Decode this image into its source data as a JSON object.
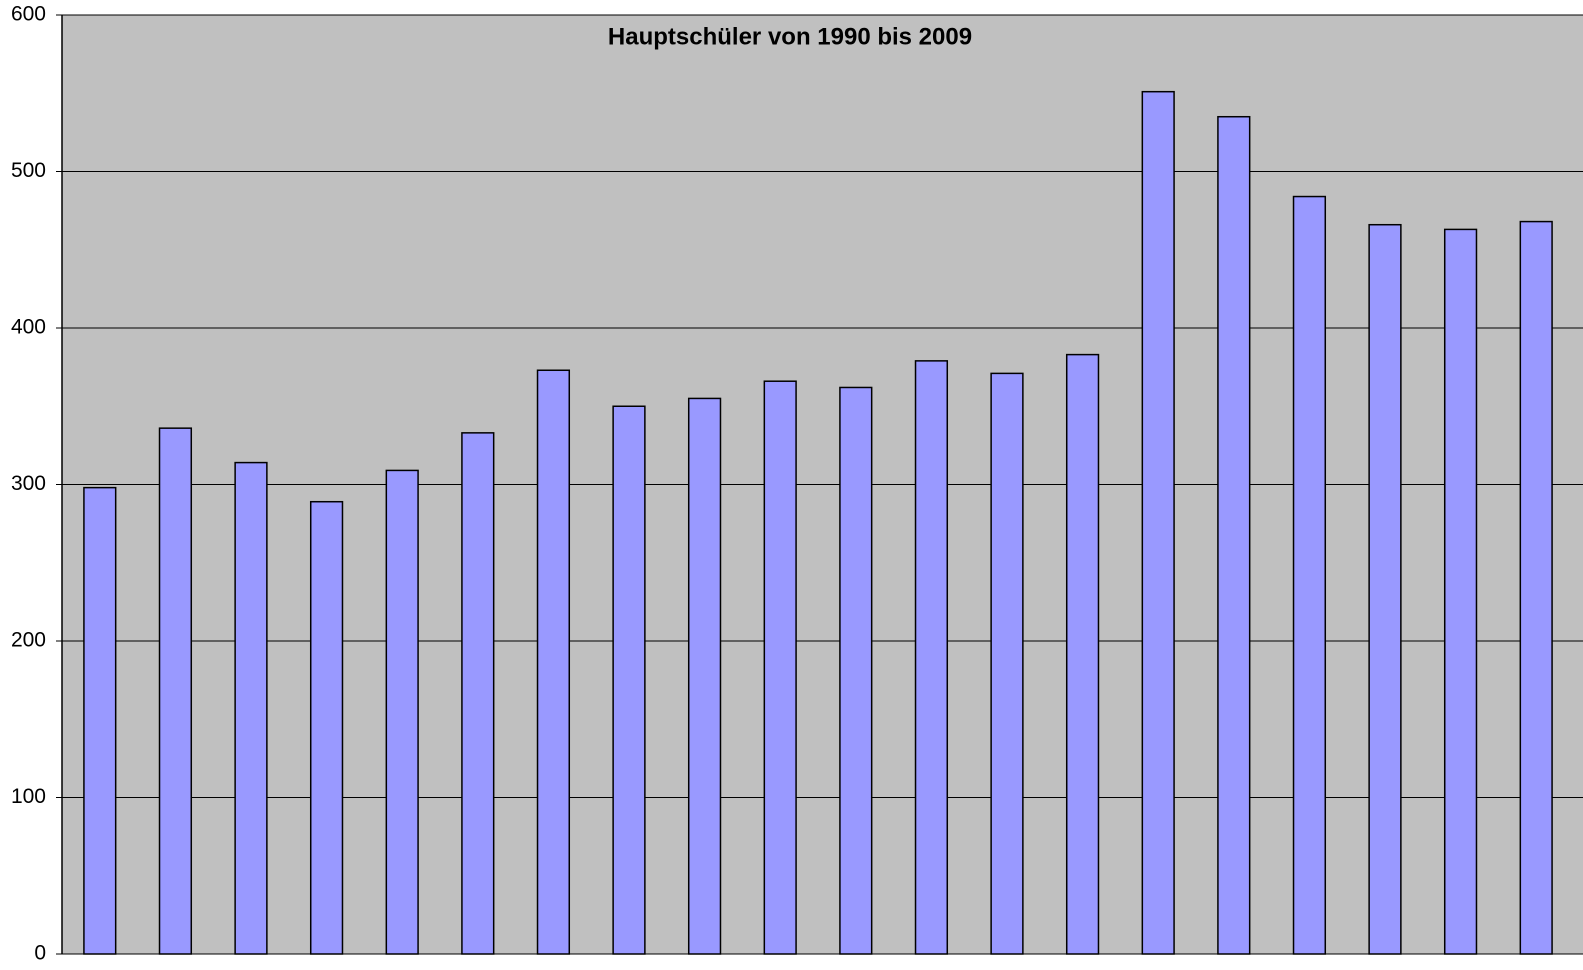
{
  "chart_data": {
    "type": "bar",
    "title": "Hauptschüler von 1990 bis 2009",
    "categories": [
      null,
      null,
      null,
      null,
      null,
      null,
      null,
      null,
      null,
      null,
      null,
      null,
      null,
      null,
      null,
      null,
      null,
      null,
      null,
      null
    ],
    "values": [
      298,
      336,
      314,
      289,
      309,
      333,
      373,
      350,
      355,
      366,
      362,
      379,
      371,
      383,
      551,
      535,
      484,
      466,
      463,
      468
    ],
    "color": "#9999ff",
    "ylim": [
      0,
      600
    ],
    "yticks": [
      0,
      100,
      200,
      300,
      400,
      500,
      600
    ],
    "grid": true
  }
}
